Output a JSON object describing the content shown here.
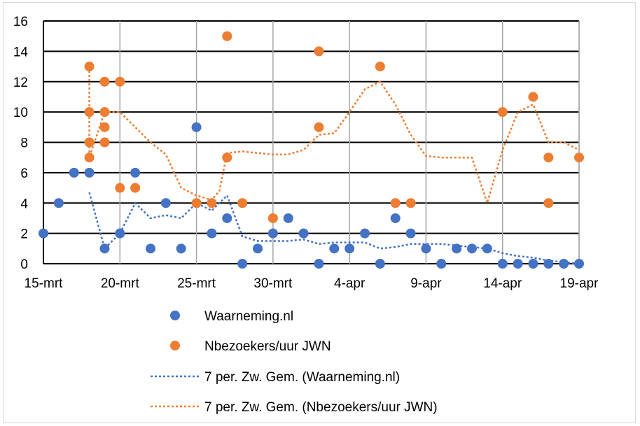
{
  "chart_data": {
    "type": "scatter",
    "title": "",
    "xlabel": "",
    "ylabel": "",
    "x_range_days": [
      "15-mrt",
      "19-apr"
    ],
    "ylim": [
      0,
      16
    ],
    "y_ticks": [
      0,
      2,
      4,
      6,
      8,
      10,
      12,
      14,
      16
    ],
    "x_tick_labels": [
      "15-mrt",
      "20-mrt",
      "25-mrt",
      "30-mrt",
      "4-apr",
      "9-apr",
      "14-apr",
      "19-apr"
    ],
    "grid": "both",
    "legend_position": "bottom",
    "colors": {
      "blue": "#4472c4",
      "orange": "#ed7d31"
    },
    "series": [
      {
        "name": "Waarneming.nl",
        "kind": "points",
        "color": "#4472c4",
        "points": [
          [
            "15-mrt",
            2
          ],
          [
            "16-mrt",
            4
          ],
          [
            "17-mrt",
            6
          ],
          [
            "18-mrt",
            6
          ],
          [
            "19-mrt",
            1
          ],
          [
            "20-mrt",
            2
          ],
          [
            "21-mrt",
            6
          ],
          [
            "22-mrt",
            1
          ],
          [
            "23-mrt",
            4
          ],
          [
            "24-mrt",
            1
          ],
          [
            "25-mrt",
            9
          ],
          [
            "26-mrt",
            2
          ],
          [
            "27-mrt",
            3
          ],
          [
            "28-mrt",
            0
          ],
          [
            "29-mrt",
            1
          ],
          [
            "30-mrt",
            2
          ],
          [
            "31-mrt",
            3
          ],
          [
            "1-apr",
            2
          ],
          [
            "2-apr",
            0
          ],
          [
            "3-apr",
            1
          ],
          [
            "4-apr",
            1
          ],
          [
            "5-apr",
            2
          ],
          [
            "6-apr",
            0
          ],
          [
            "7-apr",
            3
          ],
          [
            "8-apr",
            2
          ],
          [
            "9-apr",
            1
          ],
          [
            "10-apr",
            0
          ],
          [
            "11-apr",
            1
          ],
          [
            "12-apr",
            1
          ],
          [
            "13-apr",
            1
          ],
          [
            "14-apr",
            0
          ],
          [
            "15-apr",
            0
          ],
          [
            "16-apr",
            0
          ],
          [
            "17-apr",
            0
          ],
          [
            "18-apr",
            0
          ],
          [
            "19-apr",
            0
          ]
        ]
      },
      {
        "name": "Nbezoekers/uur JWN",
        "kind": "points",
        "color": "#ed7d31",
        "points": [
          [
            "18-mrt",
            13
          ],
          [
            "18-mrt",
            10
          ],
          [
            "18-mrt",
            8
          ],
          [
            "18-mrt",
            7
          ],
          [
            "19-mrt",
            12
          ],
          [
            "19-mrt",
            10
          ],
          [
            "19-mrt",
            9
          ],
          [
            "19-mrt",
            8
          ],
          [
            "20-mrt",
            12
          ],
          [
            "20-mrt",
            5
          ],
          [
            "21-mrt",
            5
          ],
          [
            "25-mrt",
            4
          ],
          [
            "26-mrt",
            4
          ],
          [
            "27-mrt",
            15
          ],
          [
            "27-mrt",
            7
          ],
          [
            "28-mrt",
            4
          ],
          [
            "30-mrt",
            3
          ],
          [
            "2-apr",
            14
          ],
          [
            "2-apr",
            9
          ],
          [
            "6-apr",
            13
          ],
          [
            "7-apr",
            4
          ],
          [
            "8-apr",
            4
          ],
          [
            "14-apr",
            10
          ],
          [
            "16-apr",
            11
          ],
          [
            "17-apr",
            7
          ],
          [
            "17-apr",
            4
          ],
          [
            "19-apr",
            7
          ]
        ]
      },
      {
        "name": "7 per. Zw. Gem. (Waarneming.nl)",
        "kind": "moving-average",
        "color": "#4472c4",
        "points": [
          [
            "18-mrt",
            4.7
          ],
          [
            "19-mrt",
            1
          ],
          [
            "20-mrt",
            2
          ],
          [
            "21-mrt",
            4
          ],
          [
            "22-mrt",
            3
          ],
          [
            "23-mrt",
            3.2
          ],
          [
            "24-mrt",
            3
          ],
          [
            "25-mrt",
            4
          ],
          [
            "26-mrt",
            3.5
          ],
          [
            "27-mrt",
            4.5
          ],
          [
            "28-mrt",
            1.8
          ],
          [
            "29-mrt",
            1.5
          ],
          [
            "30-mrt",
            1.5
          ],
          [
            "31-mrt",
            1.5
          ],
          [
            "1-apr",
            1.6
          ],
          [
            "2-apr",
            1.3
          ],
          [
            "3-apr",
            1.4
          ],
          [
            "4-apr",
            1.4
          ],
          [
            "5-apr",
            1.4
          ],
          [
            "6-apr",
            1.0
          ],
          [
            "7-apr",
            1.1
          ],
          [
            "8-apr",
            1.3
          ],
          [
            "9-apr",
            1.3
          ],
          [
            "10-apr",
            1.3
          ],
          [
            "11-apr",
            1.2
          ],
          [
            "12-apr",
            1.1
          ],
          [
            "13-apr",
            1.0
          ],
          [
            "14-apr",
            0.7
          ],
          [
            "15-apr",
            0.5
          ],
          [
            "16-apr",
            0.4
          ],
          [
            "17-apr",
            0.2
          ],
          [
            "18-apr",
            0.1
          ],
          [
            "19-apr",
            0
          ]
        ]
      },
      {
        "name": "7 per. Zw. Gem. (Nbezoekers/uur JWN)",
        "kind": "moving-average",
        "color": "#ed7d31",
        "points": [
          [
            "18-mrt",
            13
          ],
          [
            "18-mrt",
            7
          ],
          [
            "19-mrt",
            10
          ],
          [
            "20-mrt",
            10
          ],
          [
            "21-mrt",
            9
          ],
          [
            "22-mrt",
            8
          ],
          [
            "23-mrt",
            7.2
          ],
          [
            "24-mrt",
            5
          ],
          [
            "25-mrt",
            4.5
          ],
          [
            "26-mrt",
            4.2
          ],
          [
            "26.5-mrt",
            4.8
          ],
          [
            "27-mrt",
            7.3
          ],
          [
            "28-mrt",
            7.4
          ],
          [
            "29-mrt",
            7.3
          ],
          [
            "30-mrt",
            7.2
          ],
          [
            "31-mrt",
            7.2
          ],
          [
            "1-apr",
            7.5
          ],
          [
            "2-apr",
            8.5
          ],
          [
            "3-apr",
            8.6
          ],
          [
            "4-apr",
            10
          ],
          [
            "5-apr",
            11.5
          ],
          [
            "6-apr",
            12
          ],
          [
            "7-apr",
            10.5
          ],
          [
            "8-apr",
            8.5
          ],
          [
            "9-apr",
            7.1
          ],
          [
            "10-apr",
            7
          ],
          [
            "11-apr",
            7
          ],
          [
            "12-apr",
            7
          ],
          [
            "13-apr",
            4
          ],
          [
            "14-apr",
            7.5
          ],
          [
            "15-apr",
            10
          ],
          [
            "16-apr",
            10.5
          ],
          [
            "17-apr",
            8
          ],
          [
            "18-apr",
            8
          ],
          [
            "19-apr",
            7.5
          ]
        ]
      }
    ]
  }
}
